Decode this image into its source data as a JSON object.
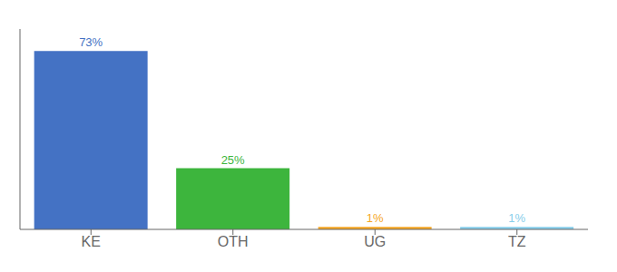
{
  "chart_data": {
    "type": "bar",
    "categories": [
      "KE",
      "OTH",
      "UG",
      "TZ"
    ],
    "values": [
      73,
      25,
      1,
      1
    ],
    "value_labels": [
      "73%",
      "25%",
      "1%",
      "1%"
    ],
    "colors": [
      "#4472c4",
      "#3db53d",
      "#f5a623",
      "#87ceeb"
    ],
    "ylim": [
      0,
      82
    ],
    "data_labels": true,
    "tick_labels": "x",
    "grid": false
  }
}
